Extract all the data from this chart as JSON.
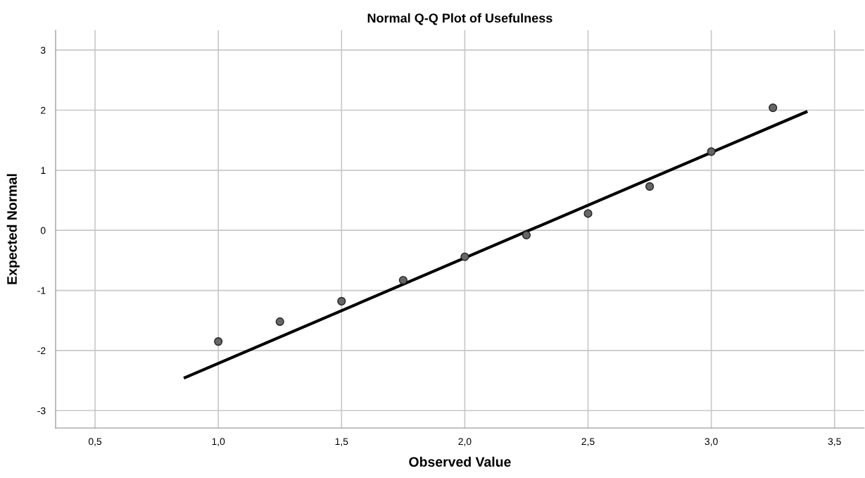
{
  "chart_data": {
    "type": "scatter",
    "title": "Normal Q-Q Plot of Usefulness",
    "xlabel": "Observed Value",
    "ylabel": "Expected Normal",
    "series": [
      {
        "marker": "circle",
        "color": "#666666",
        "x": [
          1.0,
          1.25,
          1.5,
          1.75,
          2.0,
          2.25,
          2.5,
          2.75,
          3.0,
          3.25
        ],
        "values": [
          -1.85,
          -1.52,
          -1.18,
          -0.83,
          -0.44,
          -0.08,
          0.28,
          0.73,
          1.31,
          2.04
        ]
      },
      {
        "type": "line",
        "marker": "none",
        "color": "#000000",
        "x": [
          0.86,
          3.39
        ],
        "values": [
          -2.46,
          1.98
        ]
      }
    ],
    "xlim": [
      0.34,
      3.62
    ],
    "ylim": [
      -3.29,
      3.33
    ],
    "xticks": [
      {
        "value": 0.5,
        "label": "0,5"
      },
      {
        "value": 1.0,
        "label": "1,0"
      },
      {
        "value": 1.5,
        "label": "1,5"
      },
      {
        "value": 2.0,
        "label": "2,0"
      },
      {
        "value": 2.5,
        "label": "2,5"
      },
      {
        "value": 3.0,
        "label": "3,0"
      },
      {
        "value": 3.5,
        "label": "3,5"
      }
    ],
    "yticks": [
      {
        "value": -3,
        "label": "-3"
      },
      {
        "value": -2,
        "label": "-2"
      },
      {
        "value": -1,
        "label": "-1"
      },
      0,
      1,
      2,
      3
    ],
    "grid": true
  }
}
